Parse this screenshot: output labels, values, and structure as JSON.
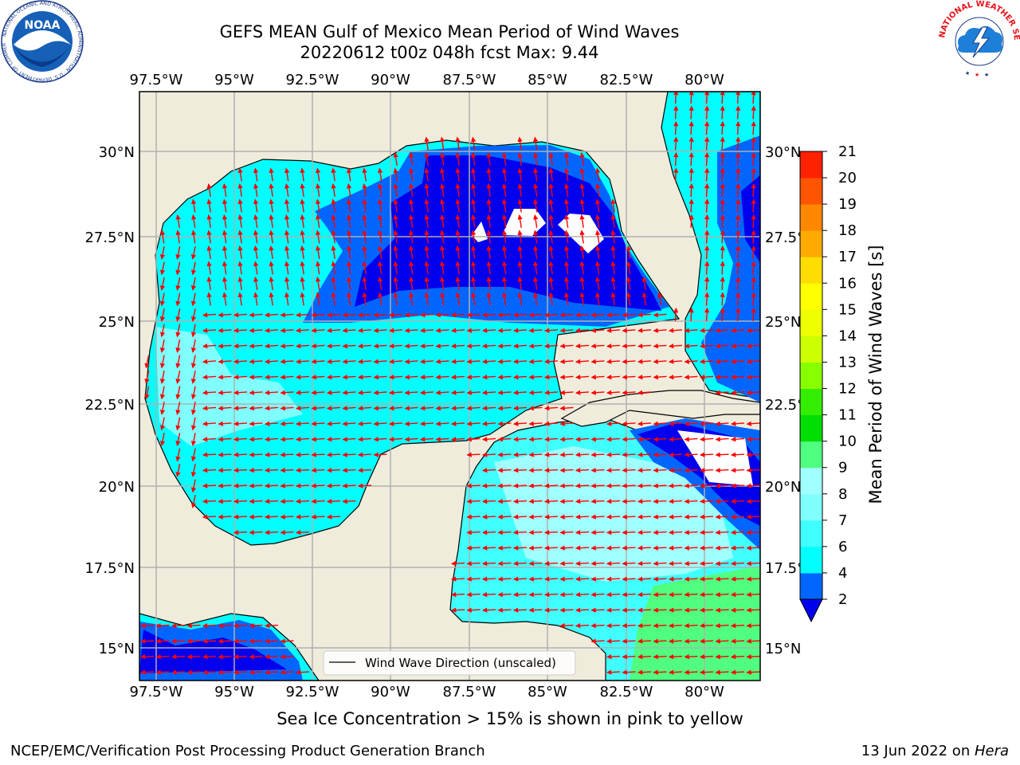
{
  "title": {
    "line1": "GEFS MEAN Gulf of Mexico Mean Period of Wind Waves",
    "line2": "20220612 t00z 048h fcst   Max: 9.44"
  },
  "map": {
    "lon_ticks": [
      "97.5°W",
      "95°W",
      "92.5°W",
      "90°W",
      "87.5°W",
      "85°W",
      "82.5°W",
      "80°W"
    ],
    "lat_ticks": [
      "30°N",
      "27.5°N",
      "25°N",
      "22.5°N",
      "20°N",
      "17.5°N",
      "15°N"
    ],
    "lon_range": [
      -98,
      -78.2
    ],
    "lat_range": [
      14,
      31.7
    ],
    "legend_label": "Wind Wave Direction (unscaled)",
    "colors": {
      "land": "#efecdc",
      "grid": "#b0b0b0",
      "arrow": "#ff0000"
    }
  },
  "colorbar": {
    "label": "Mean Period of Wind Waves [s]",
    "ticks": [
      "2",
      "4",
      "6",
      "7",
      "8",
      "9",
      "10",
      "11",
      "12",
      "13",
      "14",
      "15",
      "16",
      "17",
      "18",
      "19",
      "20",
      "21"
    ],
    "colors": [
      "#0066ff",
      "#00ffff",
      "#40ffff",
      "#80ffff",
      "#a0ffff",
      "#50ff80",
      "#00dd00",
      "#33ee00",
      "#88ff00",
      "#ccff00",
      "#eeff00",
      "#ffff00",
      "#ffdd00",
      "#ffaa00",
      "#ff8800",
      "#ff5500",
      "#ff2200",
      "#ff0000"
    ],
    "under_color": "#0000ee"
  },
  "note": "Sea Ice Concentration > 15% is shown in pink to yellow",
  "footer": {
    "left": "NCEP/EMC/Verification Post Processing Product Generation Branch",
    "date": "13 Jun 2022 on ",
    "machine": "Hera"
  },
  "logos": {
    "noaa_text": "NOAA",
    "noaa_ring": "NATIONAL OCEANIC AND ATMOSPHERIC ADMINISTRATION · U.S. DEPARTMENT OF COMMERCE",
    "nws_ring": "NATIONAL WEATHER SERVICE"
  }
}
